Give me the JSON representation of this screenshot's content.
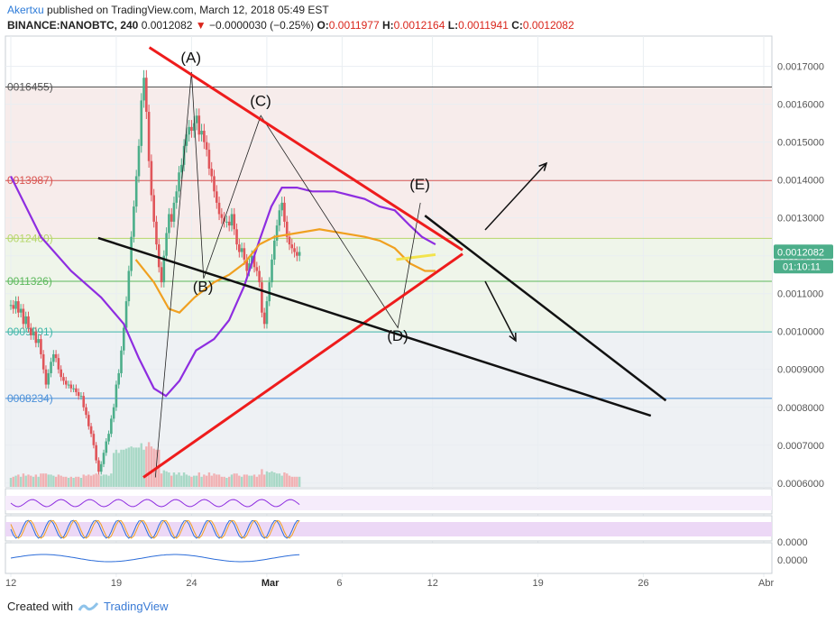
{
  "header": {
    "user": "Akertxu",
    "published": "published on TradingView.com, March 12, 2018 05:49 EST",
    "symbol": "BINANCE:NANOBTC, 240",
    "last": "0.0012082",
    "change": "−0.0000030 (−0.25%)",
    "o_label": "O:",
    "o": "0.0011977",
    "h_label": "H:",
    "h": "0.0012164",
    "l_label": "L:",
    "l": "0.0011941",
    "c_label": "C:",
    "c": "0.0012082"
  },
  "footer": {
    "created_with": "Created with",
    "brand": "TradingView"
  },
  "colors": {
    "up": "#4cae8a",
    "down": "#e0555a",
    "trend_red": "#ee1c1c",
    "trend_black": "#111111",
    "ma_purple": "#8e2de0",
    "ma_orange": "#f0a020",
    "grid": "#e9eef2"
  },
  "chart_data": {
    "type": "candlestick",
    "y_axis": {
      "ylim": [
        0.00059,
        0.00178
      ],
      "ticks": [
        "0.0017000",
        "0.0016000",
        "0.0015000",
        "0.0014000",
        "0.0013000",
        "0.0012000",
        "0.0011000",
        "0.0010000",
        "0.0009000",
        "0.0008000",
        "0.0007000",
        "0.0006000"
      ],
      "tick_values": [
        0.0017,
        0.0016,
        0.0015,
        0.0014,
        0.0013,
        0.0012,
        0.0011,
        0.001,
        0.0009,
        0.0008,
        0.0007,
        0.0006
      ]
    },
    "x_axis": {
      "labels": [
        "12",
        "19",
        "24",
        "Mar",
        "6",
        "12",
        "19",
        "26",
        "Abr"
      ],
      "label_days": [
        0,
        7,
        12,
        17,
        22,
        28,
        35,
        42,
        50
      ]
    },
    "last_price": {
      "value": 0.0012082,
      "label": "0.0012082",
      "countdown": "01:10:11"
    },
    "horizontal_levels": [
      {
        "value": 0.0016455,
        "label": "0016455)",
        "color": "#555555"
      },
      {
        "value": 0.0013987,
        "label": "0013987)",
        "color": "#d9534f"
      },
      {
        "value": 0.001246,
        "label": "0012460)",
        "color": "#b6d66a"
      },
      {
        "value": 0.0011326,
        "label": "0011326)",
        "color": "#5cb85c"
      },
      {
        "value": 0.0009991,
        "label": "0009991)",
        "color": "#3fb6a8"
      },
      {
        "value": 0.0008234,
        "label": "0008234)",
        "color": "#4a90d9"
      }
    ],
    "wave_labels": [
      {
        "text": "(A)",
        "day": 12.0,
        "price": 0.00171
      },
      {
        "text": "(B)",
        "day": 12.8,
        "price": 0.001105
      },
      {
        "text": "(C)",
        "day": 16.6,
        "price": 0.001595
      },
      {
        "text": "(D)",
        "day": 25.7,
        "price": 0.000975
      },
      {
        "text": "(E)",
        "day": 27.2,
        "price": 0.001375
      }
    ],
    "trendlines": [
      {
        "color": "red",
        "from": [
          9.2,
          0.00175
        ],
        "to": [
          30.0,
          0.001215
        ]
      },
      {
        "color": "red",
        "from": [
          8.8,
          0.000615
        ],
        "to": [
          30.0,
          0.001205
        ]
      },
      {
        "color": "black",
        "from": [
          5.8,
          0.001247
        ],
        "to": [
          42.5,
          0.000778
        ]
      },
      {
        "color": "black",
        "from": [
          27.5,
          0.001306
        ],
        "to": [
          43.5,
          0.000818
        ]
      }
    ],
    "close_series_days_start": 0,
    "close_series_step_days": 0.1667,
    "closes": [
      0.00107,
      0.00106,
      0.00108,
      0.00105,
      0.00106,
      0.00102,
      0.00104,
      0.00101,
      0.00099,
      0.001,
      0.00097,
      0.00098,
      0.00094,
      0.0009,
      0.00086,
      0.00089,
      0.00092,
      0.00094,
      0.00093,
      0.0009,
      0.00088,
      0.00087,
      0.00086,
      0.00086,
      0.00085,
      0.00085,
      0.00084,
      0.00083,
      0.00083,
      0.0008,
      0.00078,
      0.00075,
      0.00073,
      0.0007,
      0.00066,
      0.00063,
      0.00065,
      0.00068,
      0.00071,
      0.00073,
      0.00077,
      0.0008,
      0.00086,
      0.00089,
      0.00095,
      0.00101,
      0.00108,
      0.00116,
      0.00125,
      0.00133,
      0.00141,
      0.00149,
      0.00161,
      0.00167,
      0.00158,
      0.00145,
      0.00136,
      0.00129,
      0.00123,
      0.00117,
      0.00113,
      0.0012,
      0.00126,
      0.00131,
      0.00129,
      0.00134,
      0.00137,
      0.00142,
      0.00144,
      0.00149,
      0.00152,
      0.00154,
      0.00153,
      0.00155,
      0.00157,
      0.00152,
      0.00153,
      0.0015,
      0.00148,
      0.00143,
      0.00141,
      0.00137,
      0.00134,
      0.00131,
      0.0013,
      0.00129,
      0.00129,
      0.00128,
      0.00131,
      0.00127,
      0.00123,
      0.00121,
      0.00122,
      0.00119,
      0.00116,
      0.00118,
      0.0012,
      0.00117,
      0.00116,
      0.00113,
      0.00105,
      0.00102,
      0.00108,
      0.00113,
      0.00119,
      0.00124,
      0.00128,
      0.00132,
      0.00134,
      0.00129,
      0.00125,
      0.00123,
      0.00122,
      0.00121,
      0.0012,
      0.00121
    ],
    "ma_purple": [
      [
        0,
        0.00141
      ],
      [
        2,
        0.00125
      ],
      [
        4,
        0.00116
      ],
      [
        6,
        0.00109
      ],
      [
        7.5,
        0.00102
      ],
      [
        8.5,
        0.00093
      ],
      [
        9.5,
        0.00085
      ],
      [
        10.3,
        0.00083
      ],
      [
        11.2,
        0.00087
      ],
      [
        12.3,
        0.00095
      ],
      [
        13.5,
        0.00098
      ],
      [
        14.5,
        0.00103
      ],
      [
        15.5,
        0.00112
      ],
      [
        16.5,
        0.00124
      ],
      [
        17.3,
        0.00133
      ],
      [
        18,
        0.00138
      ],
      [
        19,
        0.00138
      ],
      [
        20,
        0.00137
      ],
      [
        21.5,
        0.00137
      ],
      [
        22.5,
        0.00136
      ],
      [
        23.5,
        0.00135
      ],
      [
        24.5,
        0.00133
      ],
      [
        25.5,
        0.00132
      ],
      [
        26.5,
        0.00128
      ],
      [
        27.3,
        0.00125
      ],
      [
        28.2,
        0.00123
      ]
    ],
    "ma_orange": [
      [
        8.3,
        0.00119
      ],
      [
        9.5,
        0.00113
      ],
      [
        10.5,
        0.00106
      ],
      [
        11.2,
        0.00105
      ],
      [
        12.2,
        0.00109
      ],
      [
        13.5,
        0.00113
      ],
      [
        14.5,
        0.00115
      ],
      [
        15.5,
        0.00118
      ],
      [
        16.5,
        0.00123
      ],
      [
        17.5,
        0.00125
      ],
      [
        19,
        0.00126
      ],
      [
        20.5,
        0.00127
      ],
      [
        22,
        0.00126
      ],
      [
        23.5,
        0.00125
      ],
      [
        24.5,
        0.00124
      ],
      [
        25.5,
        0.00122
      ],
      [
        26.5,
        0.00118
      ],
      [
        27.5,
        0.00116
      ],
      [
        28.2,
        0.00116
      ]
    ]
  }
}
